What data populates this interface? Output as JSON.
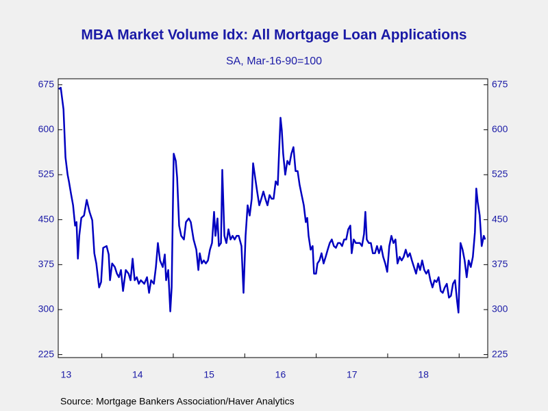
{
  "chart_data": {
    "type": "line",
    "title": "MBA Market Volume Idx: All Mortgage Loan Applications",
    "subtitle": "SA, Mar-16-90=100",
    "source": "Source:  Mortgage Bankers Association/Haver Analytics",
    "xlim": [
      2013.39,
      2019.4
    ],
    "xticks": [
      {
        "value": 2013.5,
        "label": "13"
      },
      {
        "value": 2014.5,
        "label": "14"
      },
      {
        "value": 2015.5,
        "label": "15"
      },
      {
        "value": 2016.5,
        "label": "16"
      },
      {
        "value": 2017.5,
        "label": "17"
      },
      {
        "value": 2018.5,
        "label": "18"
      }
    ],
    "ylim": [
      220,
      685
    ],
    "yticks": [
      225,
      300,
      375,
      450,
      525,
      600,
      675
    ],
    "y2lim": [
      220,
      685
    ],
    "y2ticks": [
      225,
      300,
      375,
      450,
      525,
      600,
      675
    ],
    "x": [
      2013.397,
      2013.425,
      2013.464,
      2013.492,
      2013.521,
      2013.54,
      2013.569,
      2013.598,
      2013.626,
      2013.646,
      2013.665,
      2013.684,
      2013.713,
      2013.751,
      2013.789,
      2013.828,
      2013.866,
      2013.895,
      2013.923,
      2013.962,
      2013.99,
      2014.019,
      2014.067,
      2014.096,
      2014.115,
      2014.144,
      2014.182,
      2014.211,
      2014.239,
      2014.268,
      2014.297,
      2014.335,
      2014.374,
      2014.402,
      2014.431,
      2014.46,
      2014.489,
      2014.517,
      2014.546,
      2014.594,
      2014.632,
      2014.661,
      2014.69,
      2014.728,
      2014.757,
      2014.785,
      2014.814,
      2014.853,
      2014.881,
      2014.9,
      2014.929,
      2014.958,
      2014.977,
      2015.006,
      2015.035,
      2015.054,
      2015.082,
      2015.111,
      2015.149,
      2015.178,
      2015.217,
      2015.245,
      2015.284,
      2015.322,
      2015.351,
      2015.37,
      2015.399,
      2015.427,
      2015.456,
      2015.485,
      2015.513,
      2015.542,
      2015.571,
      2015.59,
      2015.619,
      2015.638,
      2015.667,
      2015.686,
      2015.715,
      2015.743,
      2015.772,
      2015.801,
      2015.83,
      2015.858,
      2015.887,
      2015.916,
      2015.954,
      2015.983,
      2016.012,
      2016.04,
      2016.069,
      2016.098,
      2016.117,
      2016.146,
      2016.174,
      2016.203,
      2016.232,
      2016.261,
      2016.289,
      2016.318,
      2016.347,
      2016.376,
      2016.404,
      2016.433,
      2016.462,
      2016.481,
      2016.5,
      2016.519,
      2016.538,
      2016.567,
      2016.596,
      2016.625,
      2016.653,
      2016.682,
      2016.711,
      2016.74,
      2016.768,
      2016.797,
      2016.826,
      2016.854,
      2016.874,
      2016.893,
      2016.922,
      2016.95,
      2016.969,
      2016.998,
      2017.017,
      2017.046,
      2017.075,
      2017.103,
      2017.132,
      2017.161,
      2017.19,
      2017.218,
      2017.247,
      2017.276,
      2017.305,
      2017.333,
      2017.362,
      2017.391,
      2017.42,
      2017.448,
      2017.477,
      2017.496,
      2017.525,
      2017.554,
      2017.583,
      2017.611,
      2017.64,
      2017.669,
      2017.688,
      2017.707,
      2017.736,
      2017.765,
      2017.793,
      2017.822,
      2017.851,
      2017.879,
      2017.908,
      2017.937,
      2017.966,
      2017.994,
      2018.023,
      2018.052,
      2018.081,
      2018.109,
      2018.138,
      2018.167,
      2018.196,
      2018.224,
      2018.253,
      2018.282,
      2018.311,
      2018.339,
      2018.368,
      2018.397,
      2018.426,
      2018.454,
      2018.483,
      2018.512,
      2018.54,
      2018.569,
      2018.598,
      2018.627,
      2018.655,
      2018.684,
      2018.713,
      2018.742,
      2018.77,
      2018.799,
      2018.828,
      2018.857,
      2018.885,
      2018.914,
      2018.943,
      2018.972,
      2018.991,
      2019.019,
      2019.048,
      2019.077,
      2019.106,
      2019.134,
      2019.163,
      2019.192,
      2019.221,
      2019.24,
      2019.259,
      2019.288,
      2019.316,
      2019.345,
      2019.364
    ],
    "series": [
      {
        "name": "All Mortgage Loan Applications",
        "color": "#0000c0",
        "values": [
          668,
          670,
          634,
          554,
          525,
          514,
          493,
          474,
          440,
          446,
          385,
          423,
          453,
          457,
          483,
          463,
          449,
          394,
          377,
          337,
          346,
          403,
          406,
          392,
          349,
          377,
          371,
          360,
          354,
          366,
          331,
          366,
          360,
          349,
          385,
          349,
          354,
          343,
          349,
          343,
          354,
          328,
          349,
          343,
          371,
          411,
          382,
          371,
          392,
          349,
          366,
          297,
          337,
          560,
          548,
          520,
          440,
          423,
          417,
          446,
          452,
          446,
          417,
          400,
          366,
          394,
          377,
          382,
          377,
          382,
          400,
          411,
          463,
          423,
          452,
          406,
          411,
          533,
          423,
          411,
          434,
          417,
          423,
          417,
          423,
          423,
          406,
          328,
          423,
          474,
          457,
          485,
          544,
          520,
          497,
          474,
          485,
          497,
          485,
          474,
          491,
          485,
          485,
          514,
          508,
          565,
          620,
          599,
          560,
          525,
          548,
          542,
          560,
          571,
          531,
          531,
          508,
          491,
          474,
          446,
          453,
          423,
          400,
          406,
          360,
          360,
          377,
          382,
          394,
          377,
          388,
          400,
          411,
          417,
          406,
          403,
          411,
          411,
          406,
          417,
          417,
          434,
          440,
          394,
          417,
          411,
          411,
          411,
          406,
          426,
          463,
          417,
          411,
          411,
          394,
          394,
          406,
          394,
          406,
          388,
          377,
          363,
          406,
          423,
          411,
          417,
          377,
          388,
          382,
          388,
          400,
          388,
          394,
          382,
          371,
          360,
          377,
          366,
          382,
          366,
          360,
          366,
          349,
          337,
          349,
          346,
          354,
          331,
          328,
          337,
          343,
          320,
          323,
          343,
          349,
          314,
          295,
          411,
          400,
          382,
          354,
          382,
          371,
          388,
          429,
          502,
          480,
          457,
          406,
          423,
          417
        ]
      }
    ]
  }
}
